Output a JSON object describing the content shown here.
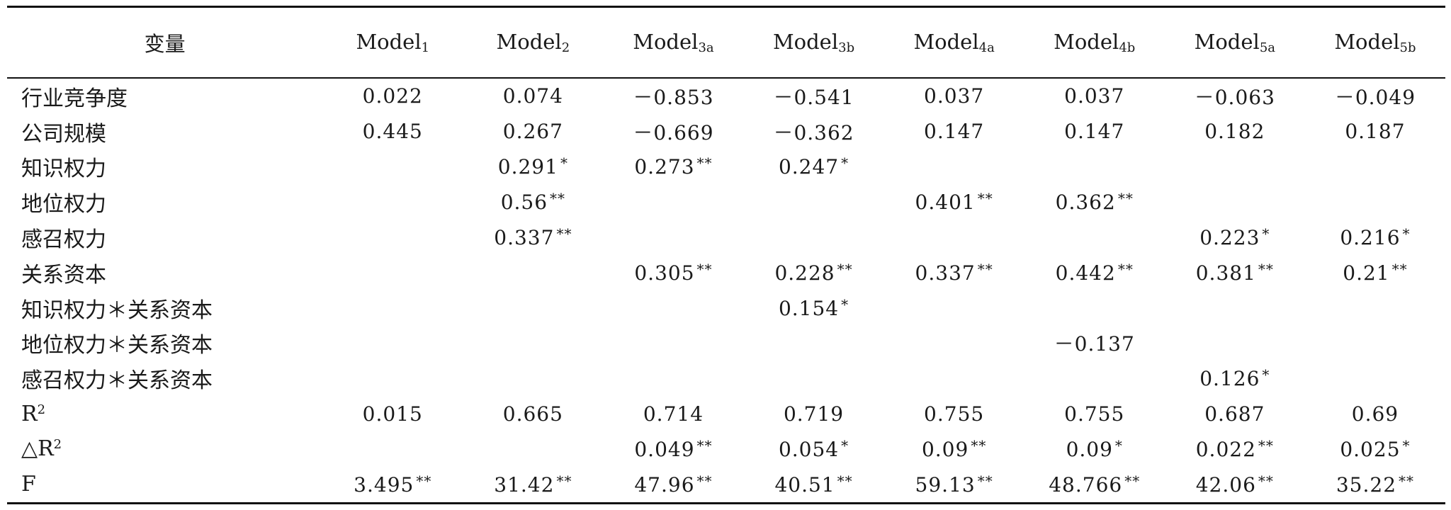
{
  "header": {
    "variable": "变量",
    "models": [
      {
        "base": "Model",
        "sub": "1"
      },
      {
        "base": "Model",
        "sub": "2"
      },
      {
        "base": "Model",
        "sub": "3a"
      },
      {
        "base": "Model",
        "sub": "3b"
      },
      {
        "base": "Model",
        "sub": "4a"
      },
      {
        "base": "Model",
        "sub": "4b"
      },
      {
        "base": "Model",
        "sub": "5a"
      },
      {
        "base": "Model",
        "sub": "5b"
      }
    ]
  },
  "rows": [
    {
      "label": "行业竞争度",
      "sup": "",
      "cells": [
        {
          "v": "0.022",
          "s": ""
        },
        {
          "v": "0.074",
          "s": ""
        },
        {
          "v": "－0.853",
          "s": ""
        },
        {
          "v": "－0.541",
          "s": ""
        },
        {
          "v": "0.037",
          "s": ""
        },
        {
          "v": "0.037",
          "s": ""
        },
        {
          "v": "－0.063",
          "s": ""
        },
        {
          "v": "－0.049",
          "s": ""
        }
      ]
    },
    {
      "label": "公司规模",
      "sup": "",
      "cells": [
        {
          "v": "0.445",
          "s": ""
        },
        {
          "v": "0.267",
          "s": ""
        },
        {
          "v": "－0.669",
          "s": ""
        },
        {
          "v": "－0.362",
          "s": ""
        },
        {
          "v": "0.147",
          "s": ""
        },
        {
          "v": "0.147",
          "s": ""
        },
        {
          "v": "0.182",
          "s": ""
        },
        {
          "v": "0.187",
          "s": ""
        }
      ]
    },
    {
      "label": "知识权力",
      "sup": "",
      "cells": [
        {
          "v": "",
          "s": ""
        },
        {
          "v": "0.291",
          "s": "*"
        },
        {
          "v": "0.273",
          "s": "**"
        },
        {
          "v": "0.247",
          "s": "*"
        },
        {
          "v": "",
          "s": ""
        },
        {
          "v": "",
          "s": ""
        },
        {
          "v": "",
          "s": ""
        },
        {
          "v": "",
          "s": ""
        }
      ]
    },
    {
      "label": "地位权力",
      "sup": "",
      "cells": [
        {
          "v": "",
          "s": ""
        },
        {
          "v": "0.56",
          "s": "**"
        },
        {
          "v": "",
          "s": ""
        },
        {
          "v": "",
          "s": ""
        },
        {
          "v": "0.401",
          "s": "**"
        },
        {
          "v": "0.362",
          "s": "**"
        },
        {
          "v": "",
          "s": ""
        },
        {
          "v": "",
          "s": ""
        }
      ]
    },
    {
      "label": "感召权力",
      "sup": "",
      "cells": [
        {
          "v": "",
          "s": ""
        },
        {
          "v": "0.337",
          "s": "**"
        },
        {
          "v": "",
          "s": ""
        },
        {
          "v": "",
          "s": ""
        },
        {
          "v": "",
          "s": ""
        },
        {
          "v": "",
          "s": ""
        },
        {
          "v": "0.223",
          "s": "*"
        },
        {
          "v": "0.216",
          "s": "*"
        }
      ]
    },
    {
      "label": "关系资本",
      "sup": "",
      "cells": [
        {
          "v": "",
          "s": ""
        },
        {
          "v": "",
          "s": ""
        },
        {
          "v": "0.305",
          "s": "**"
        },
        {
          "v": "0.228",
          "s": "**"
        },
        {
          "v": "0.337",
          "s": "**"
        },
        {
          "v": "0.442",
          "s": "**"
        },
        {
          "v": "0.381",
          "s": "**"
        },
        {
          "v": "0.21",
          "s": "**"
        }
      ]
    },
    {
      "label": "知识权力＊关系资本",
      "sup": "",
      "cells": [
        {
          "v": "",
          "s": ""
        },
        {
          "v": "",
          "s": ""
        },
        {
          "v": "",
          "s": ""
        },
        {
          "v": "0.154",
          "s": "*"
        },
        {
          "v": "",
          "s": ""
        },
        {
          "v": "",
          "s": ""
        },
        {
          "v": "",
          "s": ""
        },
        {
          "v": "",
          "s": ""
        }
      ]
    },
    {
      "label": "地位权力＊关系资本",
      "sup": "",
      "cells": [
        {
          "v": "",
          "s": ""
        },
        {
          "v": "",
          "s": ""
        },
        {
          "v": "",
          "s": ""
        },
        {
          "v": "",
          "s": ""
        },
        {
          "v": "",
          "s": ""
        },
        {
          "v": "－0.137",
          "s": ""
        },
        {
          "v": "",
          "s": ""
        },
        {
          "v": "",
          "s": ""
        }
      ]
    },
    {
      "label": "感召权力＊关系资本",
      "sup": "",
      "cells": [
        {
          "v": "",
          "s": ""
        },
        {
          "v": "",
          "s": ""
        },
        {
          "v": "",
          "s": ""
        },
        {
          "v": "",
          "s": ""
        },
        {
          "v": "",
          "s": ""
        },
        {
          "v": "",
          "s": ""
        },
        {
          "v": "0.126",
          "s": "*"
        },
        {
          "v": "",
          "s": ""
        }
      ]
    },
    {
      "label": "R",
      "sup": "2",
      "cells": [
        {
          "v": "0.015",
          "s": ""
        },
        {
          "v": "0.665",
          "s": ""
        },
        {
          "v": "0.714",
          "s": ""
        },
        {
          "v": "0.719",
          "s": ""
        },
        {
          "v": "0.755",
          "s": ""
        },
        {
          "v": "0.755",
          "s": ""
        },
        {
          "v": "0.687",
          "s": ""
        },
        {
          "v": "0.69",
          "s": ""
        }
      ]
    },
    {
      "label": "△R",
      "sup": "2",
      "cells": [
        {
          "v": "",
          "s": ""
        },
        {
          "v": "",
          "s": ""
        },
        {
          "v": "0.049",
          "s": "**"
        },
        {
          "v": "0.054",
          "s": "*"
        },
        {
          "v": "0.09",
          "s": "**"
        },
        {
          "v": "0.09",
          "s": "*"
        },
        {
          "v": "0.022",
          "s": "**"
        },
        {
          "v": "0.025",
          "s": "*"
        }
      ]
    },
    {
      "label": "F",
      "sup": "",
      "cells": [
        {
          "v": "3.495",
          "s": "**"
        },
        {
          "v": "31.42",
          "s": "**"
        },
        {
          "v": "47.96",
          "s": "**"
        },
        {
          "v": "40.51",
          "s": "**"
        },
        {
          "v": "59.13",
          "s": "**"
        },
        {
          "v": "48.766",
          "s": "**"
        },
        {
          "v": "42.06",
          "s": "**"
        },
        {
          "v": "35.22",
          "s": "**"
        }
      ]
    }
  ]
}
